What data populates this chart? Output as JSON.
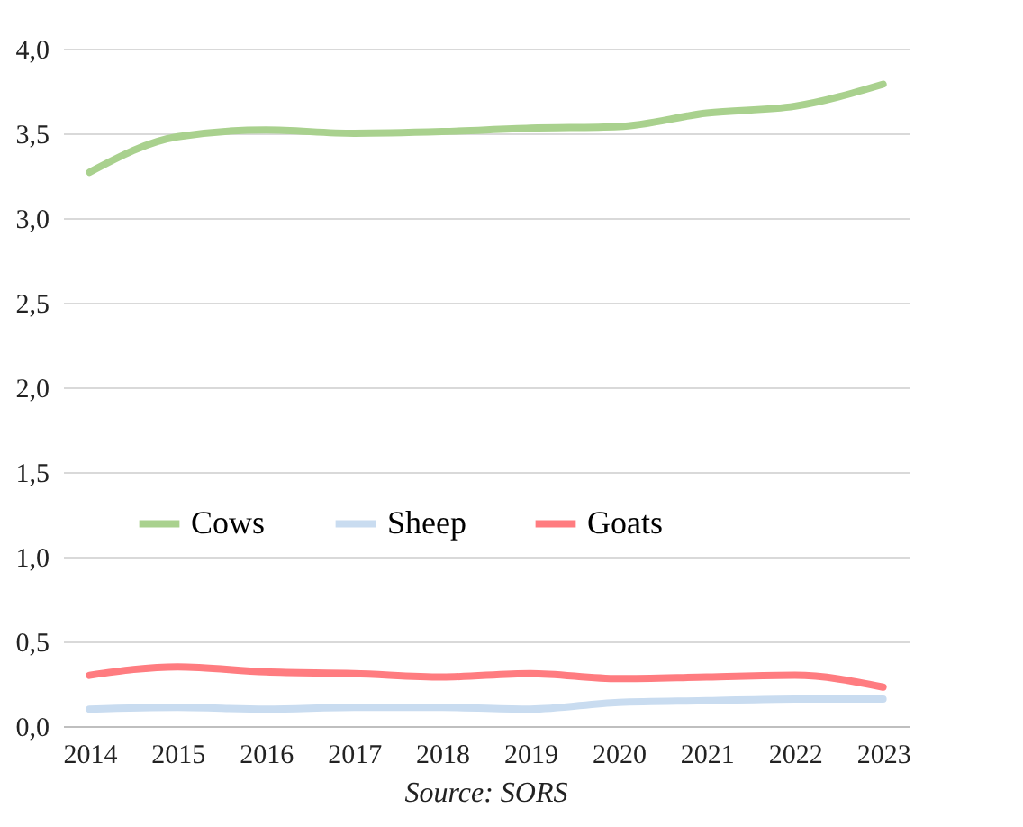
{
  "chart_data": {
    "type": "line",
    "categories": [
      "2014",
      "2015",
      "2016",
      "2017",
      "2018",
      "2019",
      "2020",
      "2021",
      "2022",
      "2023"
    ],
    "series": [
      {
        "name": "Cows",
        "color": "#a9d18e",
        "values": [
          3.27,
          3.48,
          3.52,
          3.5,
          3.51,
          3.53,
          3.54,
          3.62,
          3.66,
          3.79
        ]
      },
      {
        "name": "Sheep",
        "color": "#c9dcf0",
        "values": [
          0.1,
          0.11,
          0.1,
          0.11,
          0.11,
          0.1,
          0.14,
          0.15,
          0.16,
          0.16
        ]
      },
      {
        "name": "Goats",
        "color": "#ff7c80",
        "values": [
          0.3,
          0.35,
          0.32,
          0.31,
          0.29,
          0.31,
          0.28,
          0.29,
          0.3,
          0.23
        ]
      }
    ],
    "ylim": [
      0,
      4
    ],
    "yticks": [
      {
        "value": 0,
        "label": "0,0"
      },
      {
        "value": 0.5,
        "label": "0,5"
      },
      {
        "value": 1,
        "label": "1,0"
      },
      {
        "value": 1.5,
        "label": "1,5"
      },
      {
        "value": 2,
        "label": "2,0"
      },
      {
        "value": 2.5,
        "label": "2,5"
      },
      {
        "value": 3,
        "label": "3,0"
      },
      {
        "value": 3.5,
        "label": "3,5"
      },
      {
        "value": 4,
        "label": "4,0"
      }
    ],
    "grid": "y",
    "legend": "center",
    "marker": "none",
    "line_style": "solid",
    "annotations": [
      "Source: SORS"
    ]
  }
}
